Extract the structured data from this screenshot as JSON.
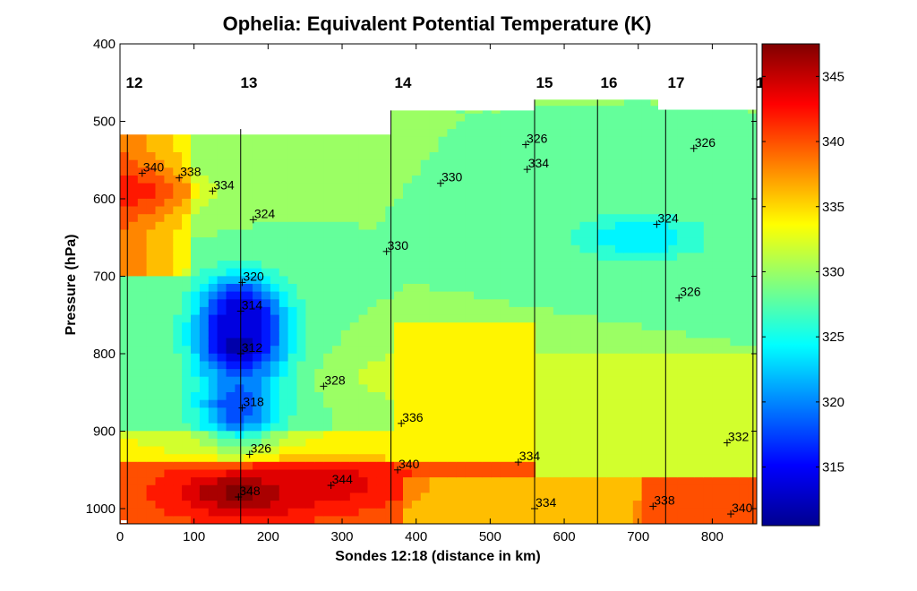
{
  "chart_data": {
    "type": "heatmap",
    "subtype": "filled-contour cross-section",
    "title": "Ophelia: Equivalent Potential Temperature (K)",
    "xlabel": "Sondes 12:18 (distance in km)",
    "ylabel": "Pressure (hPa)",
    "xlim": [
      0,
      860
    ],
    "ylim": [
      400,
      1020
    ],
    "y_reversed": true,
    "x_ticks": [
      0,
      100,
      200,
      300,
      400,
      500,
      600,
      700,
      800
    ],
    "y_ticks": [
      400,
      500,
      600,
      700,
      800,
      900,
      1000
    ],
    "colorbar": {
      "range": [
        310.5,
        347.5
      ],
      "ticks": [
        315,
        320,
        325,
        330,
        335,
        340,
        345
      ],
      "colormap": "jet"
    },
    "sondes": [
      {
        "label": "12",
        "x_km": 10,
        "top_hPa": 517
      },
      {
        "label": "13",
        "x_km": 163,
        "top_hPa": 510
      },
      {
        "label": "14",
        "x_km": 366,
        "top_hPa": 486
      },
      {
        "label": "15",
        "x_km": 560,
        "top_hPa": 472
      },
      {
        "label": "16",
        "x_km": 645,
        "top_hPa": 472
      },
      {
        "label": "17",
        "x_km": 737,
        "top_hPa": 485
      },
      {
        "label": "1",
        "x_km": 855,
        "top_hPa": 485
      }
    ],
    "contour_labels": [
      {
        "value": 340,
        "x_km": 30,
        "p_hPa": 567
      },
      {
        "value": 338,
        "x_km": 80,
        "p_hPa": 573
      },
      {
        "value": 334,
        "x_km": 125,
        "p_hPa": 590
      },
      {
        "value": 324,
        "x_km": 180,
        "p_hPa": 627
      },
      {
        "value": 320,
        "x_km": 165,
        "p_hPa": 708
      },
      {
        "value": 314,
        "x_km": 163,
        "p_hPa": 745
      },
      {
        "value": 312,
        "x_km": 163,
        "p_hPa": 800
      },
      {
        "value": 318,
        "x_km": 165,
        "p_hPa": 870
      },
      {
        "value": 326,
        "x_km": 175,
        "p_hPa": 930
      },
      {
        "value": 348,
        "x_km": 160,
        "p_hPa": 985
      },
      {
        "value": 344,
        "x_km": 285,
        "p_hPa": 970
      },
      {
        "value": 328,
        "x_km": 275,
        "p_hPa": 842
      },
      {
        "value": 330,
        "x_km": 360,
        "p_hPa": 668
      },
      {
        "value": 336,
        "x_km": 380,
        "p_hPa": 890
      },
      {
        "value": 340,
        "x_km": 375,
        "p_hPa": 950
      },
      {
        "value": 330,
        "x_km": 433,
        "p_hPa": 580
      },
      {
        "value": 326,
        "x_km": 548,
        "p_hPa": 530
      },
      {
        "value": 334,
        "x_km": 550,
        "p_hPa": 562
      },
      {
        "value": 334,
        "x_km": 538,
        "p_hPa": 940
      },
      {
        "value": 334,
        "x_km": 560,
        "p_hPa": 1000
      },
      {
        "value": 324,
        "x_km": 725,
        "p_hPa": 633
      },
      {
        "value": 326,
        "x_km": 775,
        "p_hPa": 535
      },
      {
        "value": 326,
        "x_km": 755,
        "p_hPa": 728
      },
      {
        "value": 338,
        "x_km": 720,
        "p_hPa": 997
      },
      {
        "value": 332,
        "x_km": 820,
        "p_hPa": 915
      },
      {
        "value": 340,
        "x_km": 825,
        "p_hPa": 1007
      }
    ],
    "field_regions": [
      {
        "name": "boundary-layer-warm",
        "center_km": 170,
        "center_hPa": 980,
        "value": 348
      },
      {
        "name": "boundary-layer-warm-east",
        "center_km": 290,
        "center_hPa": 968,
        "value": 344
      },
      {
        "name": "mid-level-minimum",
        "center_km": 163,
        "center_hPa": 790,
        "value": 311
      },
      {
        "name": "mid-level-min-upper",
        "center_km": 163,
        "center_hPa": 745,
        "value": 313
      },
      {
        "name": "mid-level-low-318",
        "center_km": 160,
        "center_hPa": 868,
        "value": 317
      },
      {
        "name": "upper-west-warm",
        "center_km": 10,
        "center_hPa": 590,
        "value": 342
      },
      {
        "name": "east-mid-minimum",
        "center_km": 700,
        "center_hPa": 650,
        "value": 323
      },
      {
        "name": "east-lower-warm",
        "center_km": 420,
        "center_hPa": 830,
        "value": 335
      },
      {
        "name": "east-bl-warm",
        "center_km": 800,
        "center_hPa": 1010,
        "value": 341
      }
    ]
  }
}
